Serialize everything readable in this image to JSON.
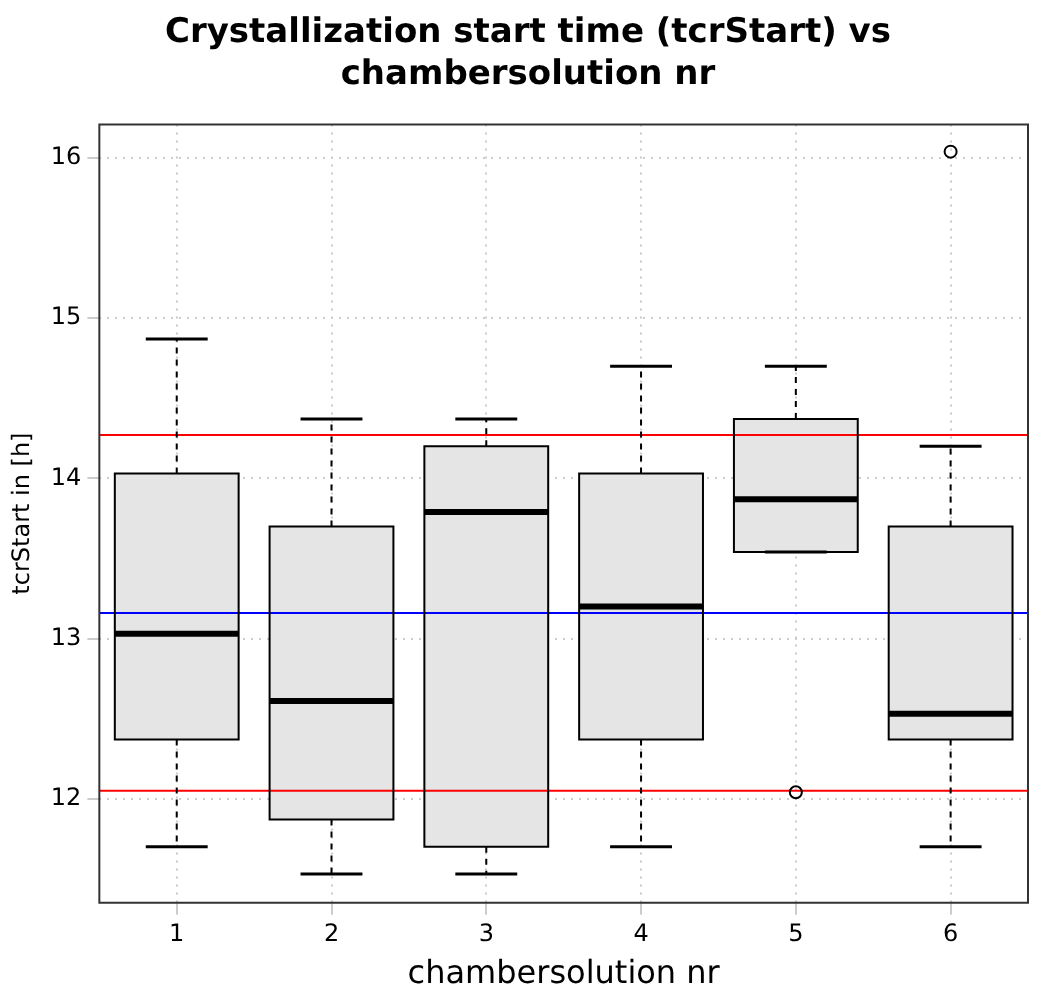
{
  "chart_data": {
    "type": "box",
    "title": "Crystallization start time (tcrStart) vs chambersolution nr",
    "xlabel": "chambersolution nr",
    "ylabel": "tcrStart in [h]",
    "categories": [
      "1",
      "2",
      "3",
      "4",
      "5",
      "6"
    ],
    "boxes": [
      {
        "low": 11.7,
        "q1": 12.37,
        "median": 13.03,
        "q3": 14.03,
        "high": 14.87
      },
      {
        "low": 11.53,
        "q1": 11.87,
        "median": 12.61,
        "q3": 13.7,
        "high": 14.37
      },
      {
        "low": 11.53,
        "q1": 11.7,
        "median": 13.79,
        "q3": 14.2,
        "high": 14.37
      },
      {
        "low": 11.7,
        "q1": 12.37,
        "median": 13.2,
        "q3": 14.03,
        "high": 14.7
      },
      {
        "low": 13.54,
        "q1": 13.54,
        "median": 13.87,
        "q3": 14.37,
        "high": 14.7,
        "outliers": [
          12.04
        ]
      },
      {
        "low": 11.7,
        "q1": 12.37,
        "median": 12.53,
        "q3": 13.7,
        "high": 14.2,
        "outliers": [
          16.04
        ]
      }
    ],
    "color": "#e5e5e5",
    "ylim": [
      11.35,
      16.21
    ],
    "yticks": [
      12,
      13,
      14,
      15,
      16
    ],
    "grid": true,
    "ref_lines": [
      {
        "axis": "y",
        "value": 14.27,
        "color": "#ff0000"
      },
      {
        "axis": "y",
        "value": 13.16,
        "color": "#0000ff"
      },
      {
        "axis": "y",
        "value": 12.05,
        "color": "#ff0000"
      }
    ]
  }
}
